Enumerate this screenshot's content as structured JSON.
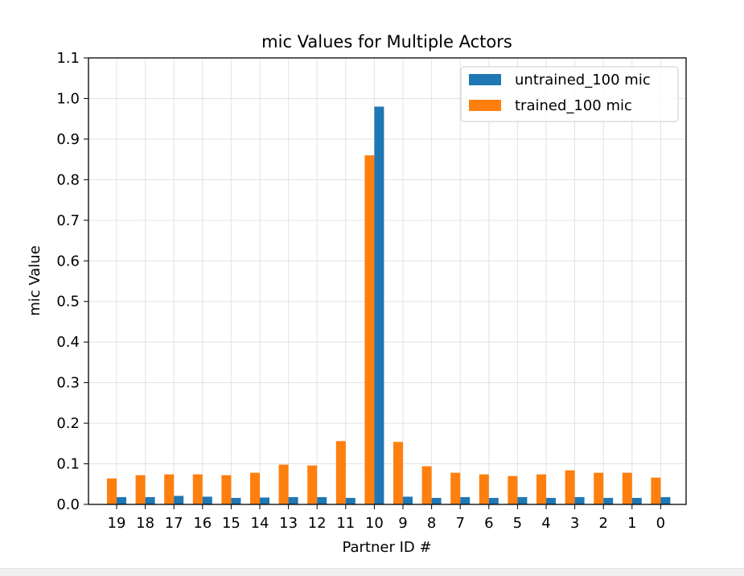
{
  "chart_data": {
    "type": "bar",
    "title": "mic Values for Multiple Actors",
    "xlabel": "Partner ID #",
    "ylabel": "mic Value",
    "ylim": [
      0,
      1.1
    ],
    "yticks": [
      "0.0",
      "0.1",
      "0.2",
      "0.3",
      "0.4",
      "0.5",
      "0.6",
      "0.7",
      "0.8",
      "0.9",
      "1.0",
      "1.1"
    ],
    "categories": [
      "19",
      "18",
      "17",
      "16",
      "15",
      "14",
      "13",
      "12",
      "11",
      "10",
      "9",
      "8",
      "7",
      "6",
      "5",
      "4",
      "3",
      "2",
      "1",
      "0"
    ],
    "grid": true,
    "legend_position": "top-right",
    "series": [
      {
        "name": "untrained_100 mic",
        "color": "#1f77b4",
        "values": [
          0.018,
          0.018,
          0.021,
          0.019,
          0.016,
          0.017,
          0.018,
          0.018,
          0.016,
          0.98,
          0.019,
          0.016,
          0.018,
          0.016,
          0.018,
          0.016,
          0.018,
          0.016,
          0.016,
          0.018
        ]
      },
      {
        "name": "trained_100 mic",
        "color": "#ff7f0e",
        "values": [
          0.064,
          0.072,
          0.074,
          0.074,
          0.072,
          0.078,
          0.098,
          0.096,
          0.156,
          0.86,
          0.154,
          0.094,
          0.078,
          0.074,
          0.07,
          0.074,
          0.084,
          0.078,
          0.078,
          0.066
        ]
      }
    ]
  }
}
